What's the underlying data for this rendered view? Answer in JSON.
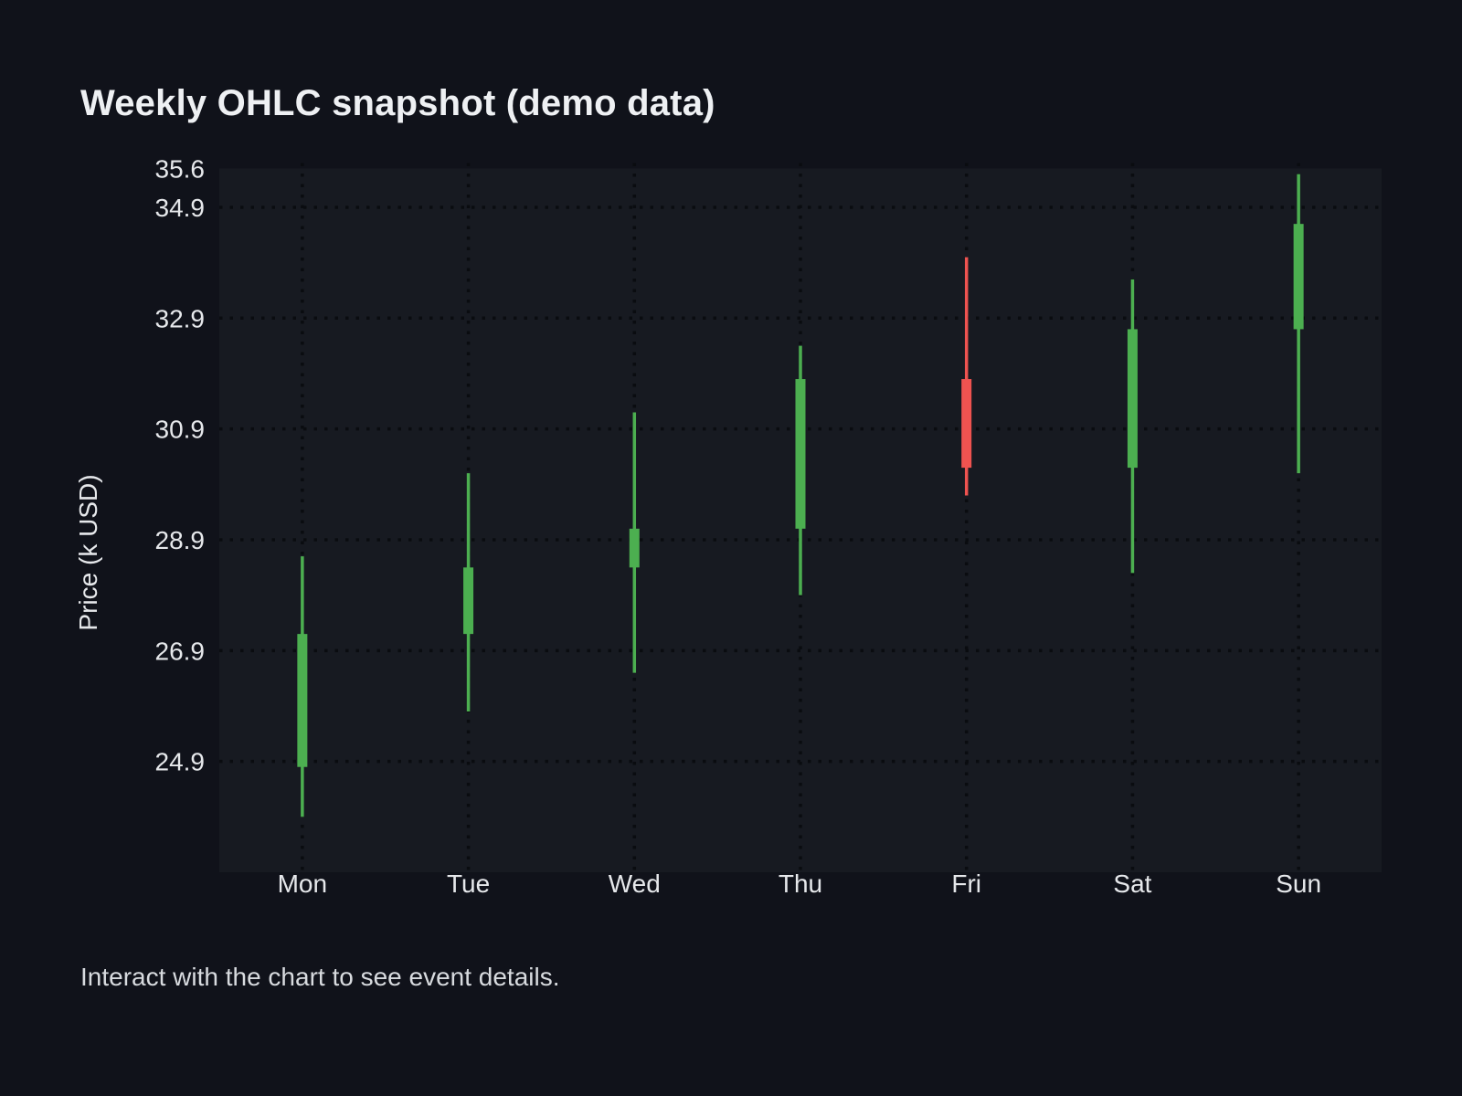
{
  "page": {
    "title": "Weekly OHLC snapshot (demo data)",
    "footer": "Interact with the chart to see event details."
  },
  "colors": {
    "background": "#10121A",
    "plot_background": "#171A21",
    "grid": "#0A0C10",
    "title_text": "#EEF0F3",
    "axis_text": "#E6E8EB",
    "footer_text": "#D8DBDF",
    "bullish": "#4CAF50",
    "bearish": "#EF5350"
  },
  "chart_data": {
    "type": "candlestick",
    "title": "Weekly OHLC snapshot (demo data)",
    "xlabel": "",
    "ylabel": "Price (k USD)",
    "categories": [
      "Mon",
      "Tue",
      "Wed",
      "Thu",
      "Fri",
      "Sat",
      "Sun"
    ],
    "series": [
      {
        "name": "Weekly OHLC",
        "points": [
          {
            "day": "Mon",
            "open": 24.8,
            "high": 28.6,
            "low": 23.9,
            "close": 27.2,
            "direction": "up"
          },
          {
            "day": "Tue",
            "open": 27.2,
            "high": 30.1,
            "low": 25.8,
            "close": 28.4,
            "direction": "up"
          },
          {
            "day": "Wed",
            "open": 28.4,
            "high": 31.2,
            "low": 26.5,
            "close": 29.1,
            "direction": "up"
          },
          {
            "day": "Thu",
            "open": 29.1,
            "high": 32.4,
            "low": 27.9,
            "close": 31.8,
            "direction": "up"
          },
          {
            "day": "Fri",
            "open": 31.8,
            "high": 34.0,
            "low": 29.7,
            "close": 30.2,
            "direction": "down"
          },
          {
            "day": "Sat",
            "open": 30.2,
            "high": 33.6,
            "low": 28.3,
            "close": 32.7,
            "direction": "up"
          },
          {
            "day": "Sun",
            "open": 32.7,
            "high": 35.5,
            "low": 30.1,
            "close": 34.6,
            "direction": "up"
          }
        ]
      }
    ],
    "yticks": [
      35.6,
      34.9,
      32.9,
      30.9,
      28.9,
      26.9,
      24.9
    ],
    "ylim": [
      22.9,
      35.6
    ],
    "grid": "dotted",
    "legend_position": "none"
  }
}
